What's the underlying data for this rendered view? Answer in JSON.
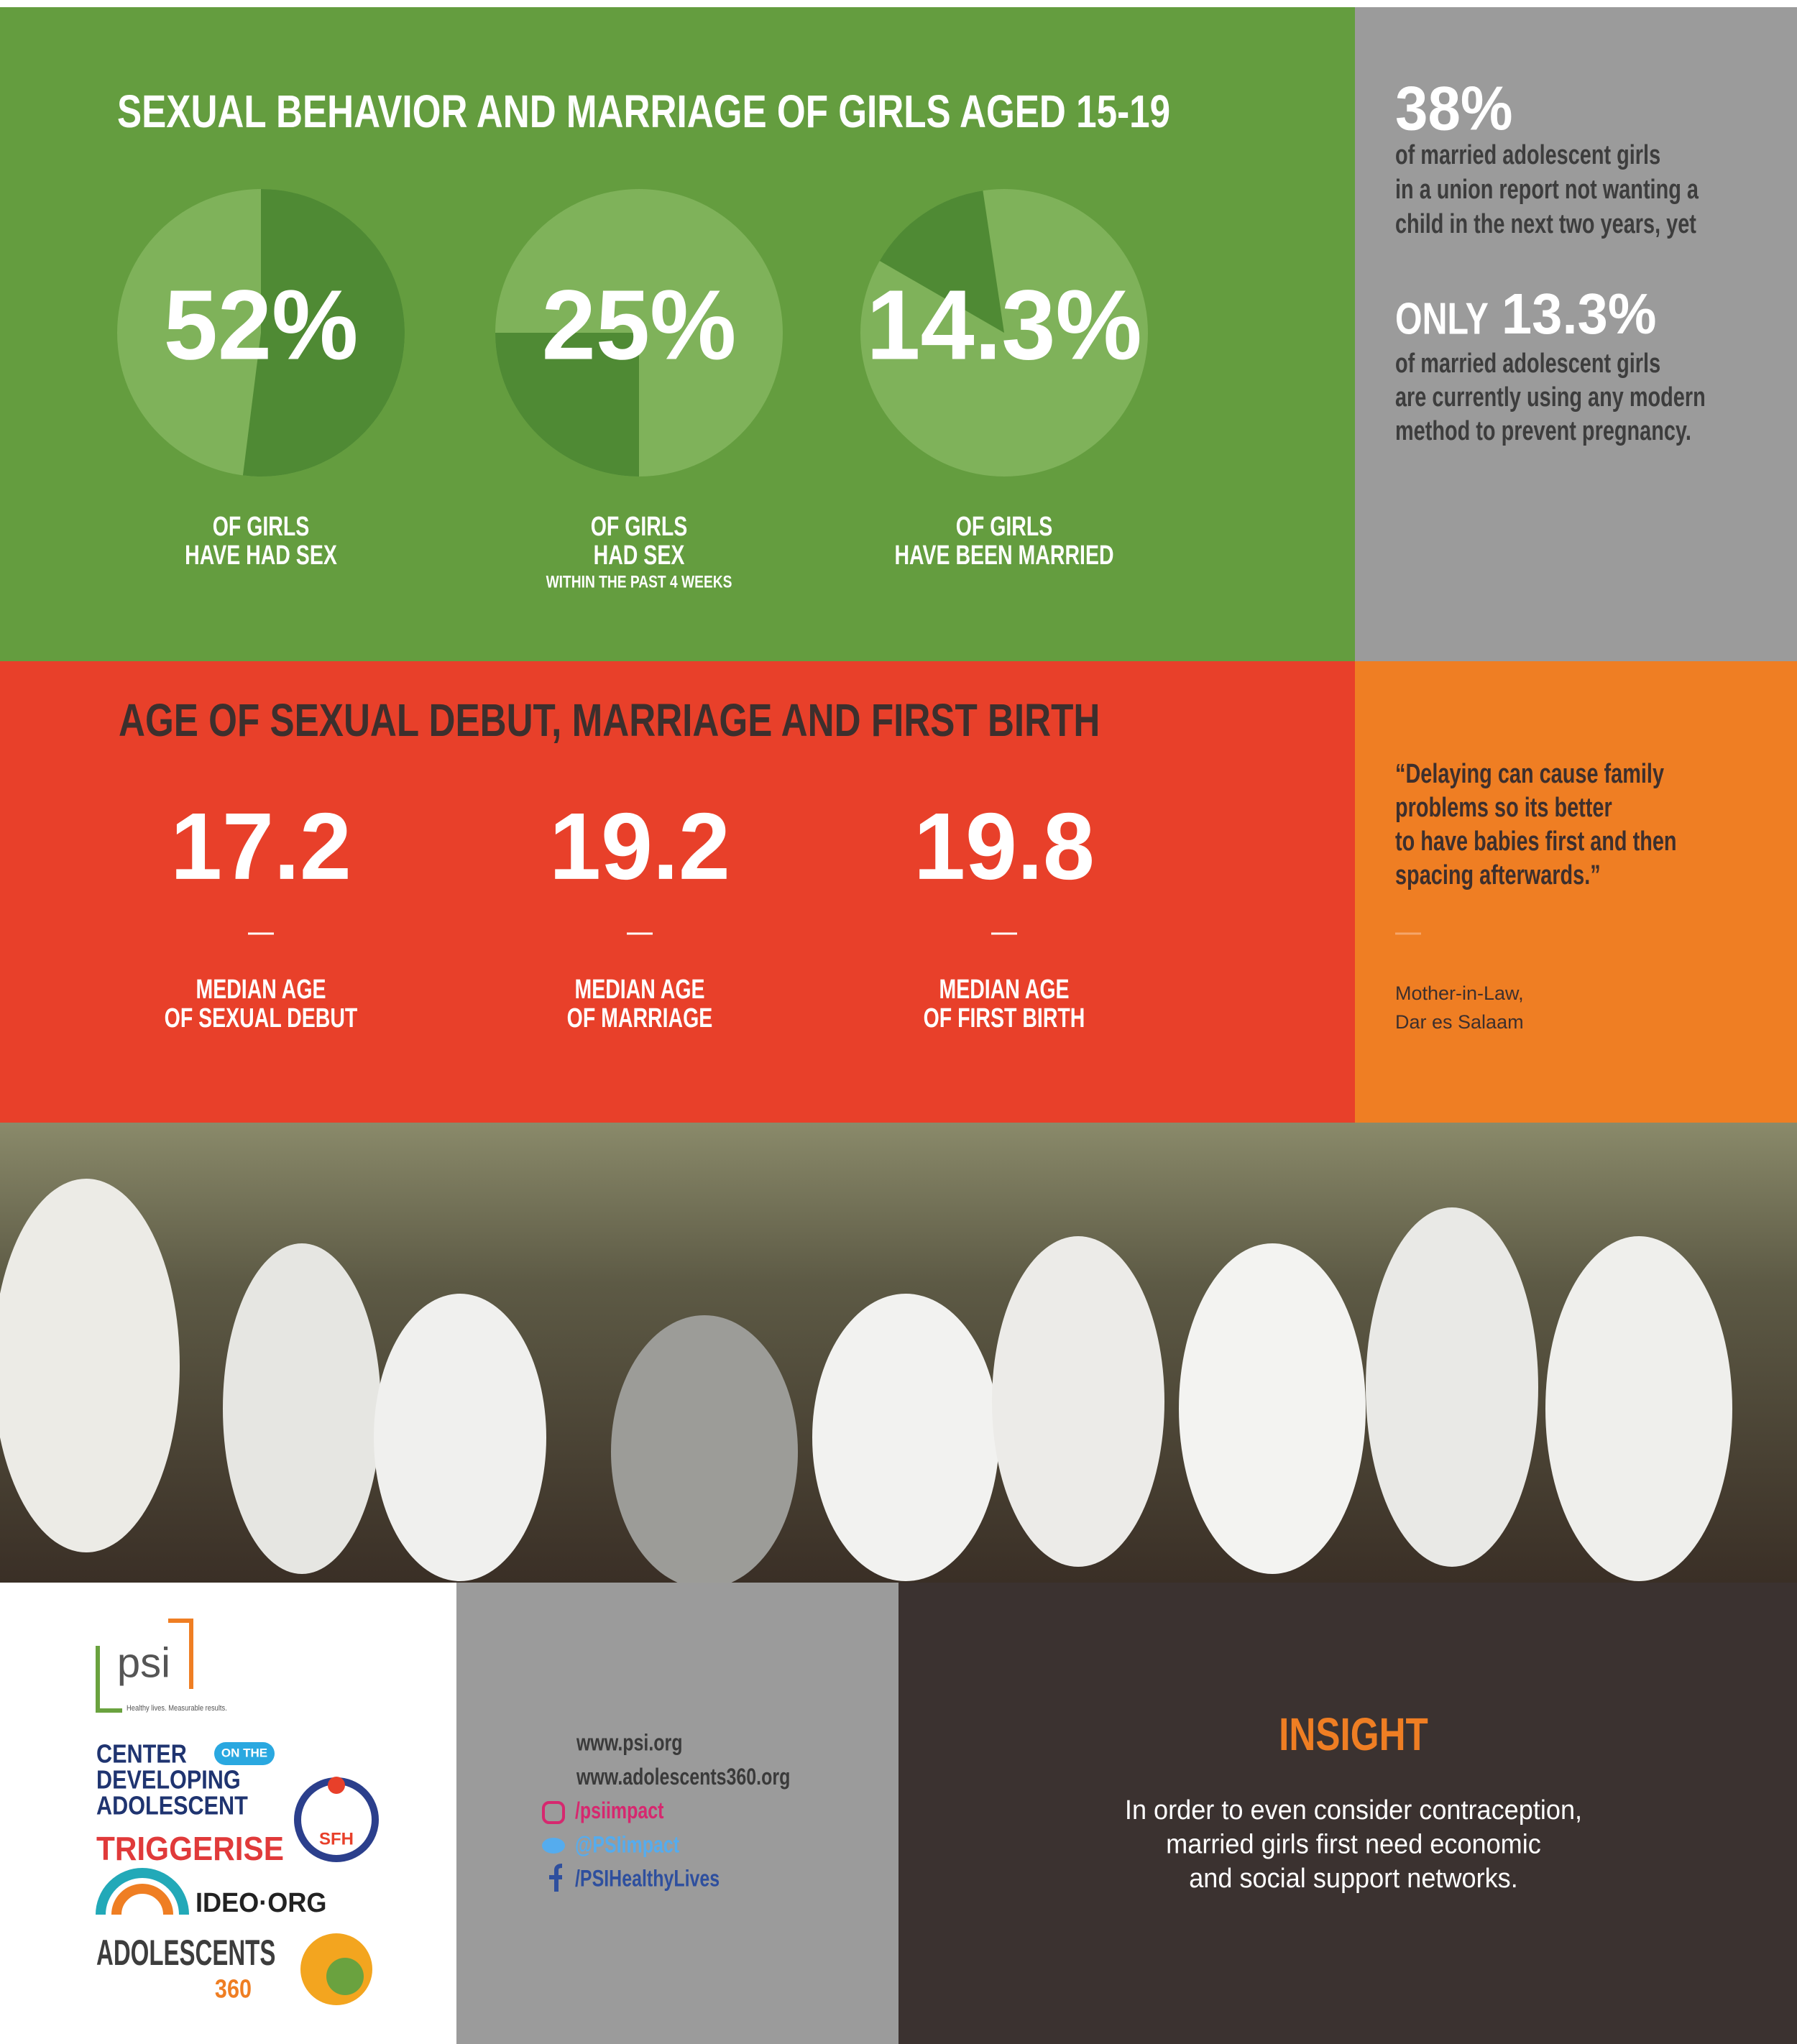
{
  "section1": {
    "title": "SEXUAL BEHAVIOR AND MARRIAGE OF GIRLS AGED 15-19",
    "stats": [
      {
        "value": 52,
        "value_label": "52%",
        "label": [
          "OF GIRLS",
          "HAVE HAD SEX"
        ]
      },
      {
        "value": 25,
        "value_label": "25%",
        "label": [
          "OF GIRLS",
          "HAD SEX"
        ],
        "note": "WITHIN THE PAST 4 WEEKS"
      },
      {
        "value": 14.3,
        "value_label": "14.3%",
        "label": [
          "OF GIRLS",
          "HAVE BEEN MARRIED"
        ]
      }
    ]
  },
  "sidebar1": {
    "stat": "38%",
    "text": [
      "of married adolescent girls",
      "in a union report not wanting a",
      "child in the next two years, yet"
    ],
    "prefix": "ONLY",
    "stat2": "13.3%",
    "text2": [
      "of married adolescent girls",
      "are currently using any modern",
      "method to prevent pregnancy."
    ]
  },
  "section2": {
    "title": "AGE OF SEXUAL DEBUT, MARRIAGE AND FIRST BIRTH",
    "stats": [
      {
        "value": "17.2",
        "label": [
          "MEDIAN AGE",
          "OF SEXUAL DEBUT"
        ]
      },
      {
        "value": "19.2",
        "label": [
          "MEDIAN AGE",
          "OF MARRIAGE"
        ]
      },
      {
        "value": "19.8",
        "label": [
          "MEDIAN AGE",
          "OF FIRST BIRTH"
        ]
      }
    ]
  },
  "quote": {
    "lines": [
      "“Delaying can cause family",
      "problems so its better",
      "to have babies first and then",
      "spacing afterwards.”"
    ],
    "attribution": [
      "Mother-in-Law,",
      "Dar es Salaam"
    ]
  },
  "logos": {
    "psi": "psi",
    "psi_tagline": "Healthy lives. Measurable results.",
    "cda": [
      "CENTER",
      "DEVELOPING",
      "ADOLESCENT"
    ],
    "cda_badge": "ON THE",
    "triggerise": "TRIGGERISE",
    "sfh": "SFH",
    "ideo": "IDEO·ORG",
    "a360": "ADOLESCENTS",
    "a360_num": "360"
  },
  "links": [
    "www.psi.org",
    "www.adolescents360.org",
    "/psiimpact",
    "@PSIimpact",
    "/PSIHealthyLives"
  ],
  "insight": {
    "title": "INSIGHT",
    "text": [
      "In order to even consider contraception,",
      "married girls first need economic",
      "and social support networks."
    ]
  }
}
